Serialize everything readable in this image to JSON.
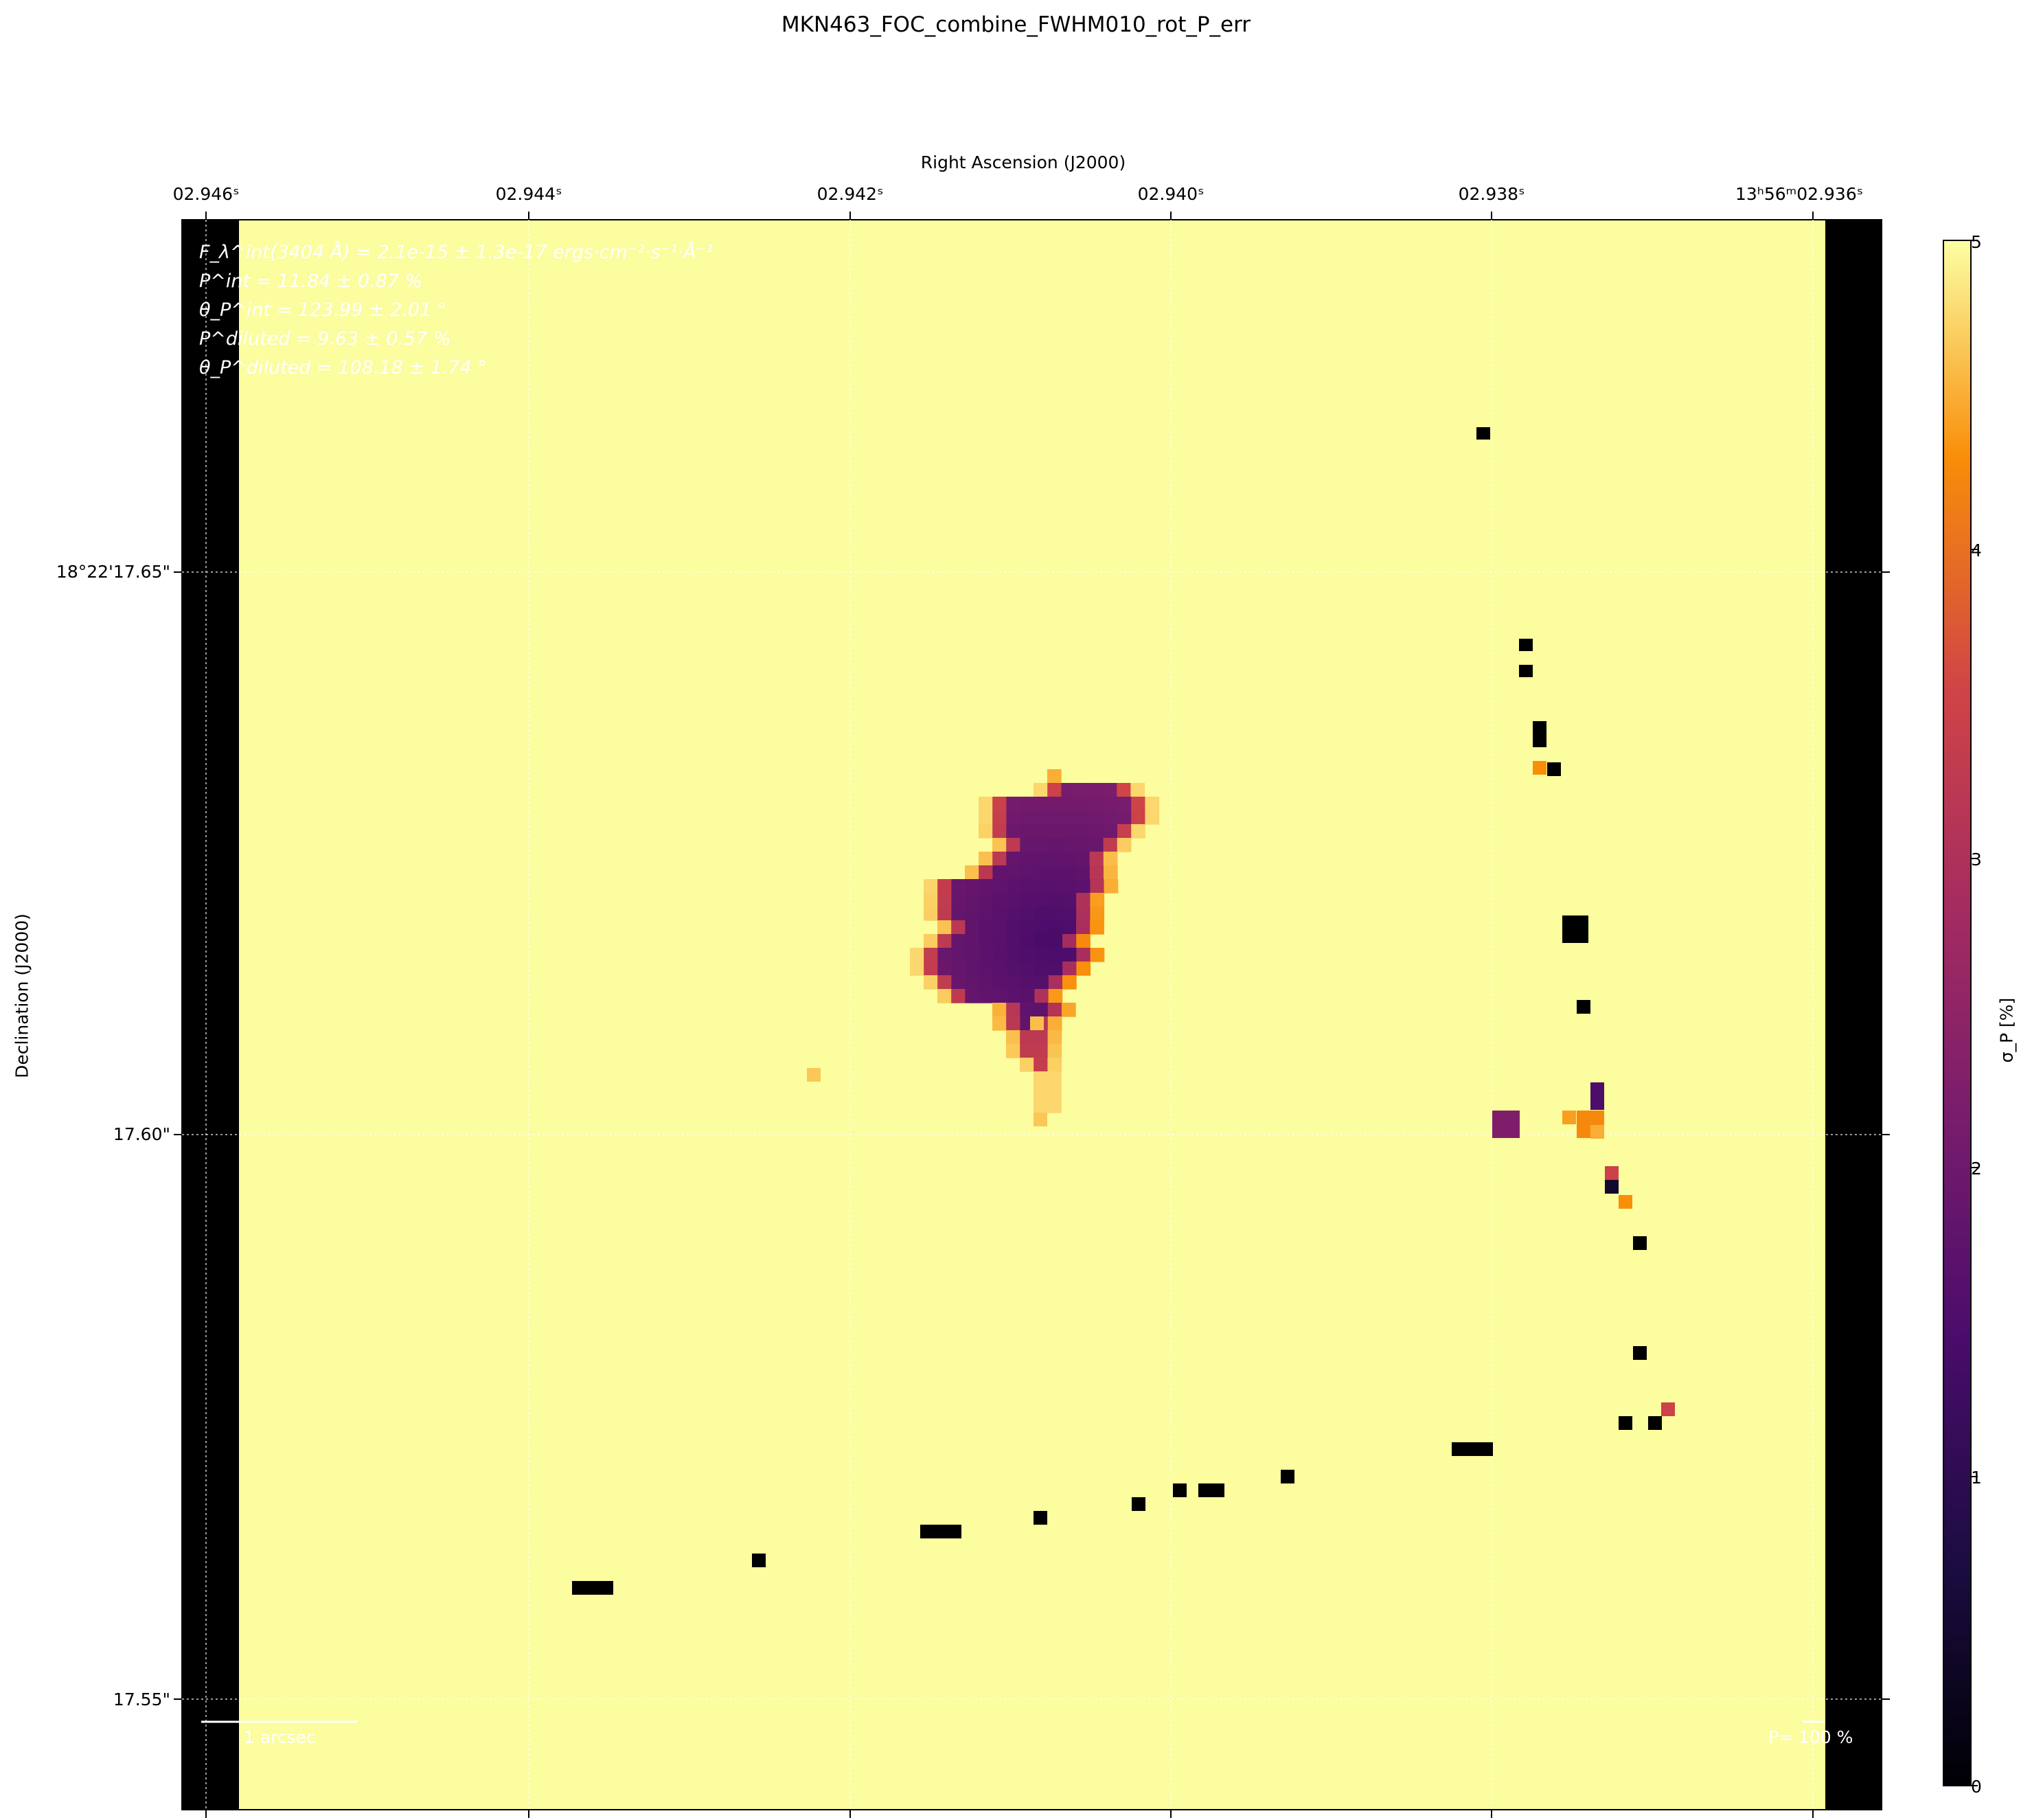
{
  "chart_data": {
    "type": "heatmap",
    "title": "MKN463_FOC_combine_FWHM010_rot_P_err",
    "xlabel": "Right Ascension (J2000)",
    "ylabel": "Declination (J2000)",
    "x_ticks": [
      "02.946ˢ",
      "02.944ˢ",
      "02.942ˢ",
      "02.940ˢ",
      "02.938ˢ",
      "13ʰ56ᵐ02.936ˢ"
    ],
    "y_ticks": [
      "18°22'17.65\"",
      "17.60\"",
      "17.55\""
    ],
    "colorbar": {
      "label": "σ_P [%]",
      "range": [
        0,
        5
      ],
      "ticks": [
        "0",
        "1",
        "2",
        "3",
        "4",
        "5"
      ],
      "colormap": "inferno"
    },
    "annotations": {
      "flux": "F_λ^int(3404 Å) = 2.1e-15 ± 1.3e-17 ergs·cm⁻²·s⁻¹·Å⁻¹",
      "p_int": "P^int = 11.84 ± 0.87 %",
      "theta_int": "θ_P^int = 123.99 ± 2.01 °",
      "p_diluted": "P^diluted = 9.63 ± 0.57 %",
      "theta_diluted": "θ_P^diluted = 108.18 ± 1.74 °",
      "scale_bar": "1 arcsec",
      "p_scale": "P= 100 %"
    },
    "background_value": 5,
    "source_region_values": "0.5 - 4.5 (central blob)",
    "masked_value": 0
  },
  "colors": {
    "background": "#fbfd9f",
    "masked": "#000000",
    "text_overlay": "#ffffff"
  }
}
